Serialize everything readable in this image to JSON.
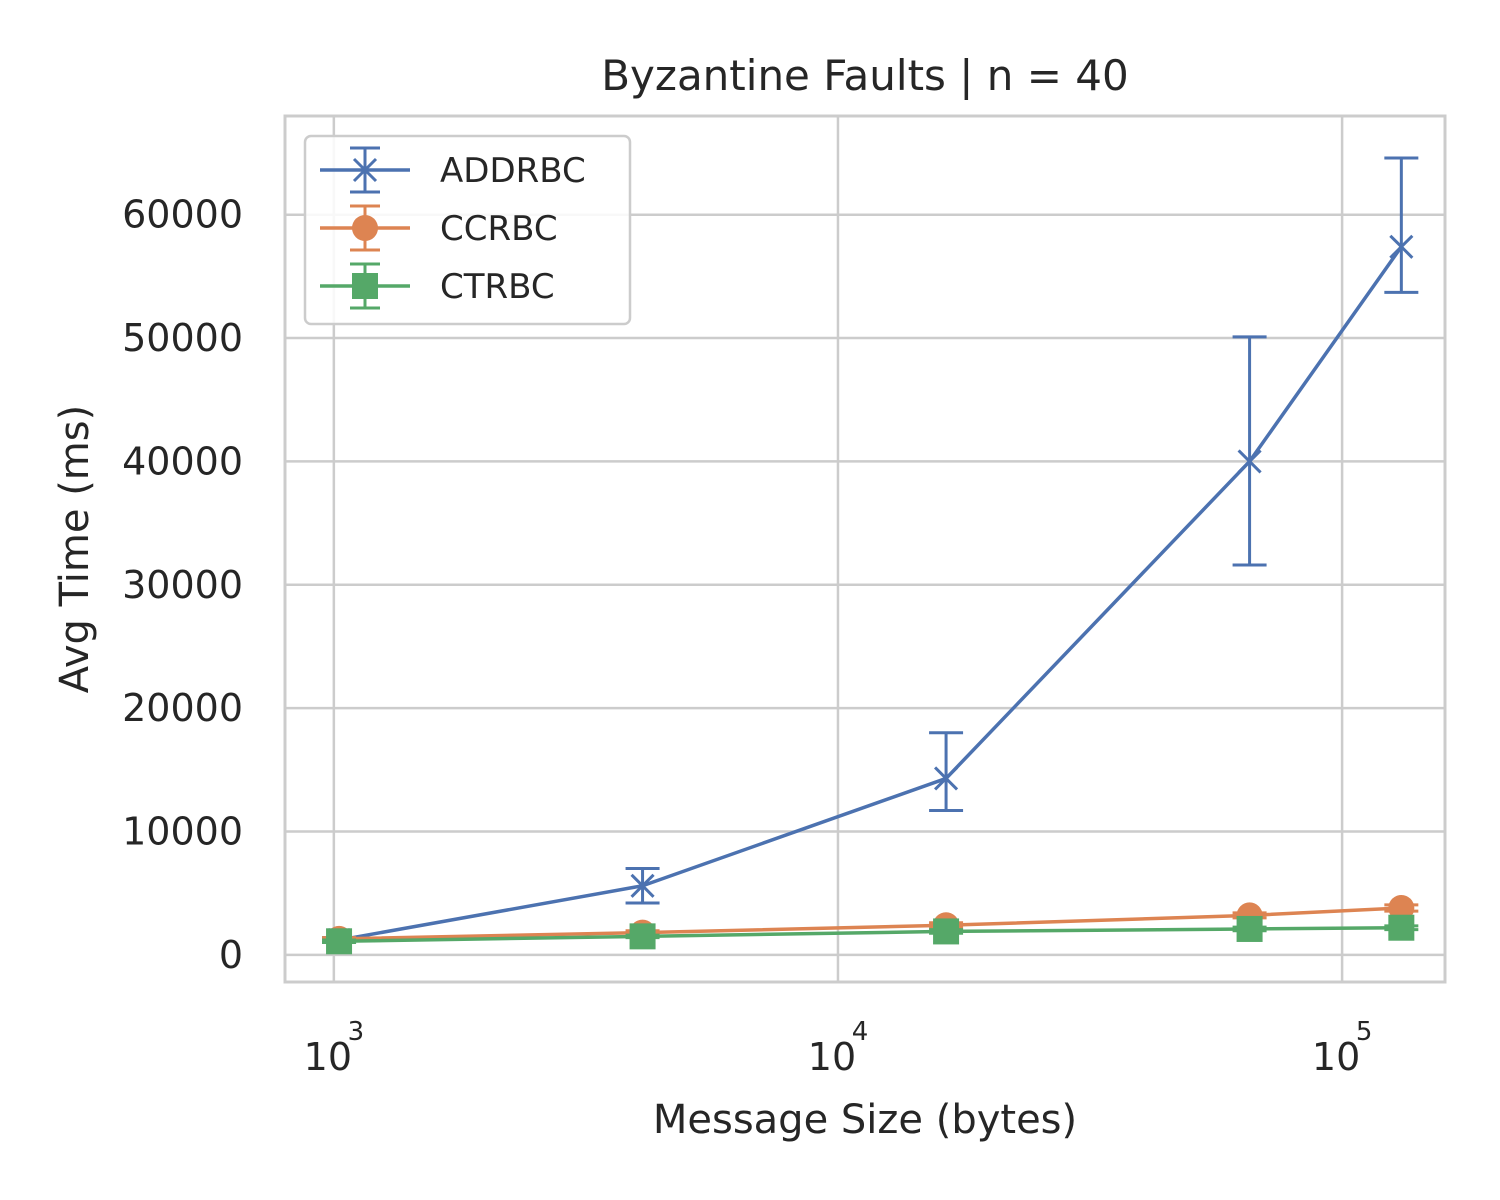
{
  "chart_data": {
    "type": "line",
    "title": "Byzantine Faults | n = 40",
    "xlabel": "Message Size (bytes)",
    "ylabel": "Avg Time (ms)",
    "xscale": "log",
    "xlim": [
      800,
      160000
    ],
    "ylim": [
      -2200,
      68000
    ],
    "grid": true,
    "legend_position": "top-left",
    "x": [
      1024,
      4096,
      16384,
      65536,
      131072
    ],
    "x_ticks": [
      {
        "value": 1000,
        "base": "10",
        "exp": "3"
      },
      {
        "value": 10000,
        "base": "10",
        "exp": "4"
      },
      {
        "value": 100000,
        "base": "10",
        "exp": "5"
      }
    ],
    "y_ticks": [
      {
        "value": 0,
        "label": "0"
      },
      {
        "value": 10000,
        "label": "10000"
      },
      {
        "value": 20000,
        "label": "20000"
      },
      {
        "value": 30000,
        "label": "30000"
      },
      {
        "value": 40000,
        "label": "40000"
      },
      {
        "value": 50000,
        "label": "50000"
      },
      {
        "value": 60000,
        "label": "60000"
      }
    ],
    "series": [
      {
        "name": "ADDRBC",
        "color": "#4c72b0",
        "marker": "x",
        "values": [
          1200,
          5600,
          14300,
          40000,
          57400
        ],
        "error": [
          [
            1000,
            1400
          ],
          [
            4200,
            7000
          ],
          [
            11700,
            18000
          ],
          [
            31600,
            50100
          ],
          [
            53700,
            64600
          ]
        ]
      },
      {
        "name": "CCRBC",
        "color": "#dd8452",
        "marker": "circle",
        "values": [
          1300,
          1800,
          2400,
          3200,
          3800
        ],
        "error": [
          [
            1200,
            1400
          ],
          [
            1650,
            1950
          ],
          [
            2200,
            2600
          ],
          [
            3000,
            3400
          ],
          [
            3550,
            4050
          ]
        ]
      },
      {
        "name": "CTRBC",
        "color": "#55a868",
        "marker": "square",
        "values": [
          1100,
          1500,
          1900,
          2100,
          2200
        ],
        "error": [
          [
            1000,
            1200
          ],
          [
            1400,
            1600
          ],
          [
            1750,
            2050
          ],
          [
            1950,
            2250
          ],
          [
            2050,
            2350
          ]
        ]
      }
    ]
  }
}
